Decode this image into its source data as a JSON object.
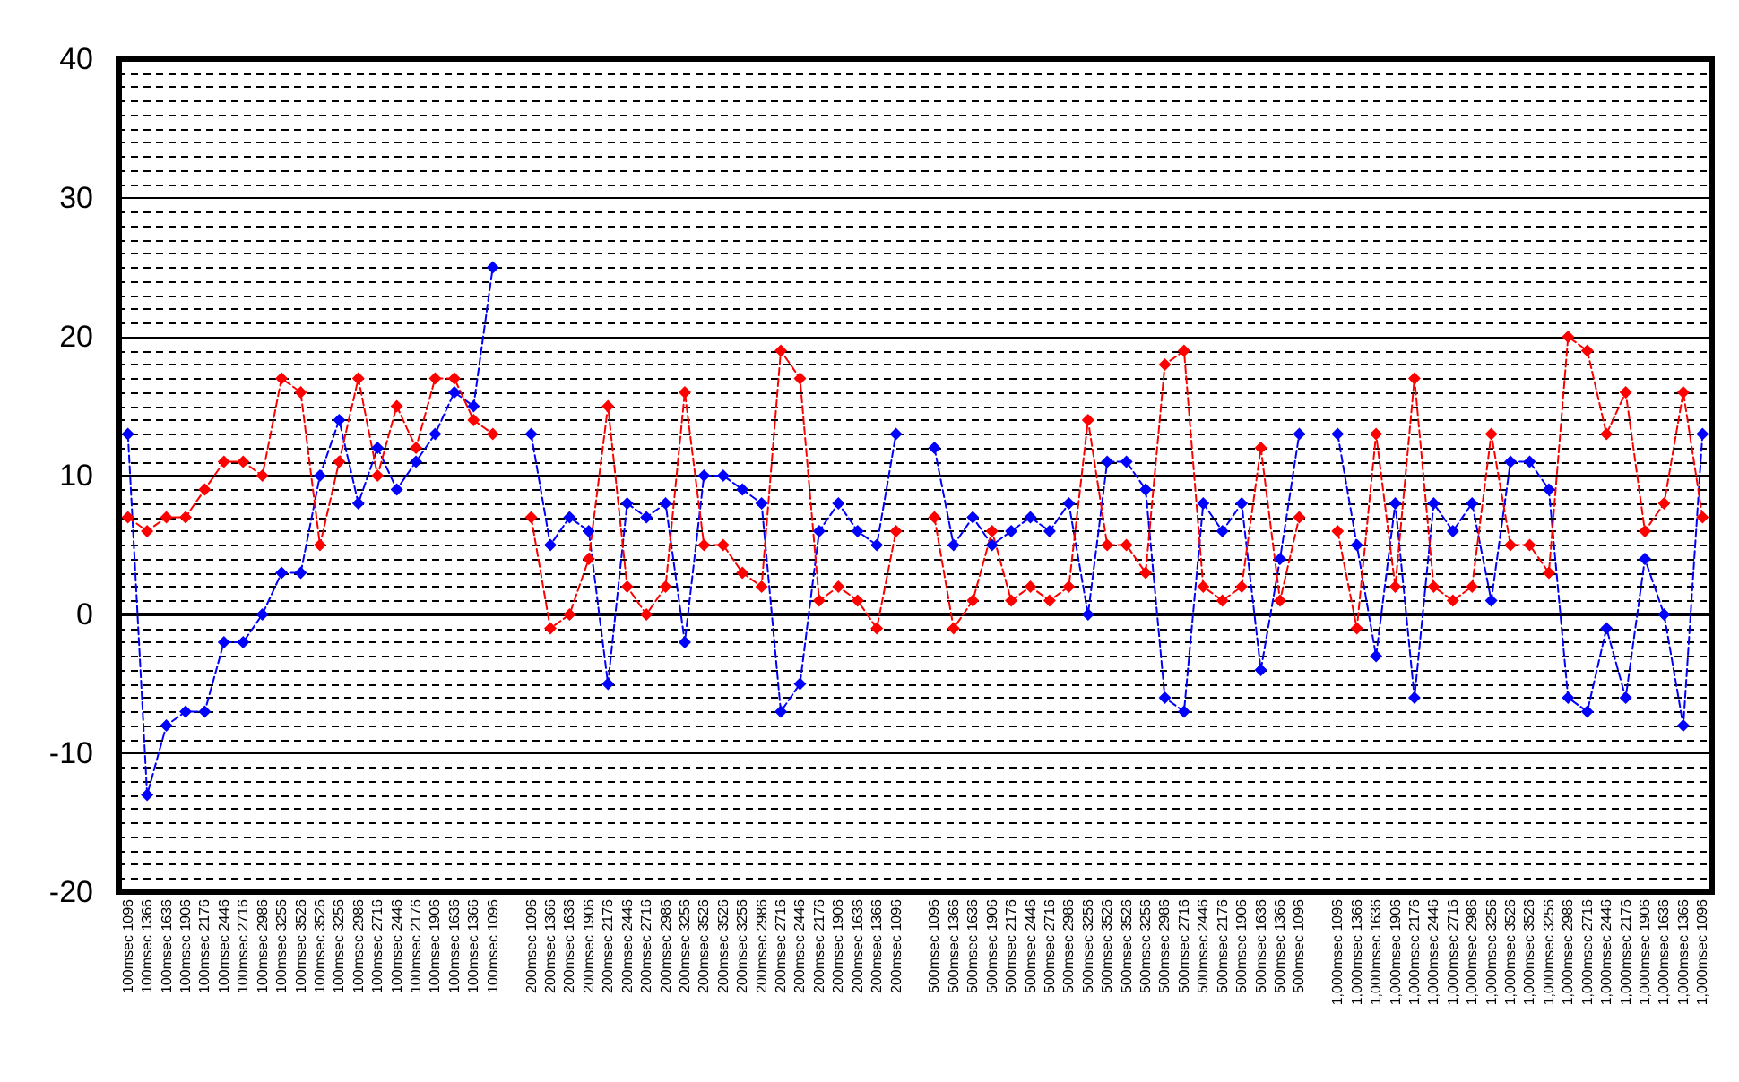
{
  "chart_data": {
    "type": "line",
    "categories": [
      "100msec 1096",
      "100msec 1366",
      "100msec 1636",
      "100msec 1906",
      "100msec 2176",
      "100msec 2446",
      "100msec 2716",
      "100msec 2986",
      "100msec 3256",
      "100msec 3526",
      "100msec 3526",
      "100msec 3256",
      "100msec 2986",
      "100msec 2716",
      "100msec 2446",
      "100msec 2176",
      "100msec 1906",
      "100msec 1636",
      "100msec 1366",
      "100msec 1096",
      null,
      "200msec 1096",
      "200msec 1366",
      "200msec 1636",
      "200msec 1906",
      "200msec 2176",
      "200msec 2446",
      "200msec 2716",
      "200msec 2986",
      "200msec 3256",
      "200msec 3526",
      "200msec 3526",
      "200msec 3256",
      "200msec 2986",
      "200msec 2716",
      "200msec 2446",
      "200msec 2176",
      "200msec 1906",
      "200msec 1636",
      "200msec 1366",
      "200msec 1096",
      null,
      "500msec 1096",
      "500msec 1366",
      "500msec 1636",
      "500msec 1906",
      "500msec 2176",
      "500msec 2446",
      "500msec 2716",
      "500msec 2986",
      "500msec 3256",
      "500msec 3526",
      "500msec 3526",
      "500msec 3256",
      "500msec 2986",
      "500msec 2716",
      "500msec 2446",
      "500msec 2176",
      "500msec 1906",
      "500msec 1636",
      "500msec 1366",
      "500msec 1096",
      null,
      "1,000msec 1096",
      "1,000msec 1366",
      "1,000msec 1636",
      "1,000msec 1906",
      "1,000msec 2176",
      "1,000msec 2446",
      "1,000msec 2716",
      "1,000msec 2986",
      "1,000msec 3256",
      "1,000msec 3526",
      "1,000msec 3526",
      "1,000msec 3256",
      "1,000msec 2986",
      "1,000msec 2716",
      "1,000msec 2446",
      "1,000msec 2176",
      "1,000msec 1906",
      "1,000msec 1636",
      "1,000msec 1366",
      "1,000msec 1096"
    ],
    "series": [
      {
        "color": "#0000ff",
        "values": [
          13,
          -13,
          -8,
          -7,
          -7,
          -2,
          -2,
          0,
          3,
          3,
          10,
          14,
          8,
          12,
          9,
          11,
          13,
          16,
          15,
          25,
          null,
          13,
          5,
          7,
          6,
          -5,
          8,
          7,
          8,
          -2,
          10,
          10,
          9,
          8,
          -7,
          -5,
          6,
          8,
          6,
          5,
          13,
          null,
          12,
          5,
          7,
          5,
          6,
          7,
          6,
          8,
          0,
          11,
          11,
          9,
          -6,
          -7,
          8,
          6,
          8,
          -4,
          4,
          13,
          null,
          13,
          5,
          -3,
          8,
          -6,
          8,
          6,
          8,
          1,
          11,
          11,
          9,
          -6,
          -7,
          -1,
          -6,
          4,
          0,
          -8,
          13
        ]
      },
      {
        "color": "#ff0000",
        "values": [
          7,
          6,
          7,
          7,
          9,
          11,
          11,
          10,
          17,
          16,
          5,
          11,
          17,
          10,
          15,
          12,
          17,
          17,
          14,
          13,
          null,
          7,
          -1,
          0,
          4,
          15,
          2,
          0,
          2,
          16,
          5,
          5,
          3,
          2,
          19,
          17,
          1,
          2,
          1,
          -1,
          6,
          null,
          7,
          -1,
          1,
          6,
          1,
          2,
          1,
          2,
          14,
          5,
          5,
          3,
          18,
          19,
          2,
          1,
          2,
          12,
          1,
          7,
          null,
          6,
          -1,
          13,
          2,
          17,
          2,
          1,
          2,
          13,
          5,
          5,
          3,
          20,
          19,
          13,
          16,
          6,
          8,
          16,
          7
        ]
      }
    ],
    "ylim": [
      -20,
      40
    ],
    "yticks": [
      -20,
      -10,
      0,
      10,
      20,
      30,
      40
    ],
    "grid": "y",
    "marker": "diamond",
    "line_style": "dashed"
  }
}
